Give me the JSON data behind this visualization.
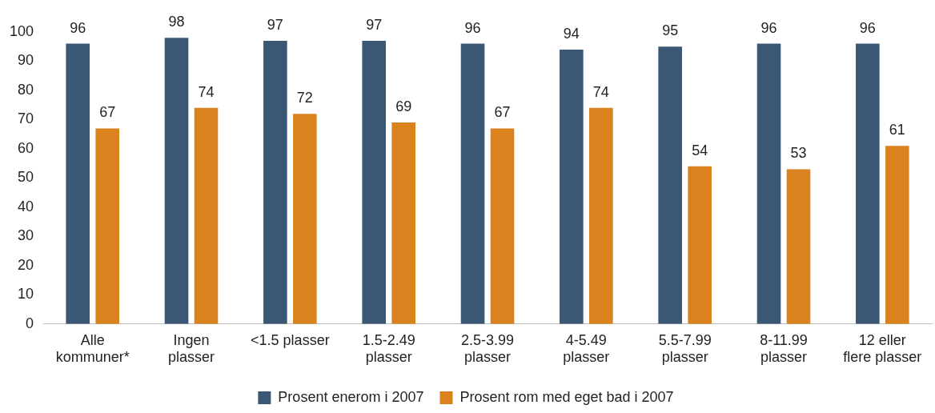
{
  "chart_data": {
    "type": "bar",
    "categories": [
      "Alle\nkommuner*",
      "Ingen\nplasser",
      "<1.5 plasser",
      "1.5-2.49\nplasser",
      "2.5-3.99\nplasser",
      "4-5.49\nplasser",
      "5.5-7.99\nplasser",
      "8-11.99\nplasser",
      "12 eller\nflere plasser"
    ],
    "series": [
      {
        "name": "Prosent enerom i 2007",
        "color": "#3a5875",
        "values": [
          96,
          98,
          97,
          97,
          96,
          94,
          95,
          96,
          96
        ]
      },
      {
        "name": "Prosent rom med eget bad i 2007",
        "color": "#d9821e",
        "values": [
          67,
          74,
          72,
          69,
          67,
          74,
          54,
          53,
          61
        ]
      }
    ],
    "ylim": [
      0,
      100
    ],
    "yticks": [
      0,
      10,
      20,
      30,
      40,
      50,
      60,
      70,
      80,
      90,
      100
    ],
    "grid": false,
    "legend": "bottom",
    "data_labels": true
  }
}
